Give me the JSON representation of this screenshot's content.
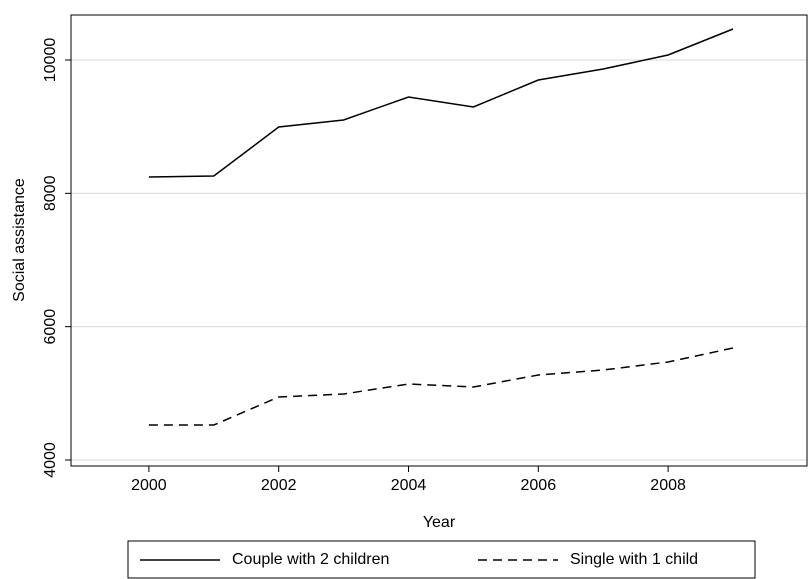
{
  "chart_data": {
    "type": "line",
    "x_label": "Year",
    "y_label": "Social assistance",
    "x": [
      2000,
      2001,
      2002,
      2003,
      2004,
      2005,
      2006,
      2007,
      2008,
      2009
    ],
    "series": [
      {
        "name": "Couple with 2 children",
        "color": "#000000",
        "dash": "solid",
        "values": [
          8245,
          8260,
          8995,
          9100,
          9445,
          9295,
          9700,
          9865,
          10075,
          10465
        ]
      },
      {
        "name": "Single with 1 child",
        "color": "#000000",
        "dash": "dashed",
        "values": [
          4525,
          4525,
          4945,
          4990,
          5140,
          5095,
          5275,
          5350,
          5470,
          5680
        ]
      }
    ],
    "xlim": [
      1998.8,
      2010.14
    ],
    "xticks": [
      2000,
      2002,
      2004,
      2006,
      2008
    ],
    "ylim": [
      3910,
      10675
    ],
    "yticks": [
      4000,
      6000,
      8000,
      10000
    ],
    "grid": true,
    "legend": "bottom"
  }
}
